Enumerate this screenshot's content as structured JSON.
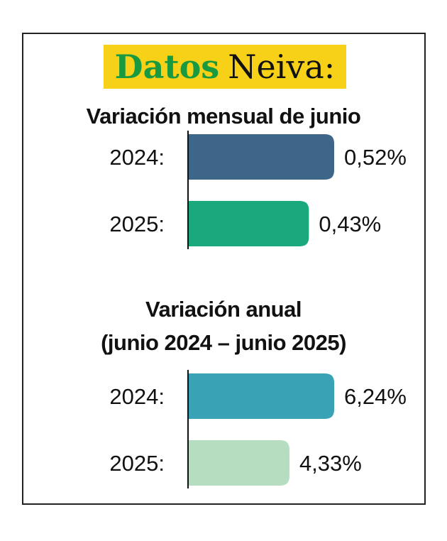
{
  "header": {
    "title_strong": "Datos",
    "title_light": "Neiva:",
    "accent_color": "#f7d117",
    "title_color": "#1a9a40"
  },
  "chart_data": [
    {
      "type": "bar",
      "orientation": "horizontal",
      "title": "Variación mensual de junio",
      "categories": [
        "2024:",
        "2025:"
      ],
      "values": [
        0.52,
        0.43
      ],
      "value_labels": [
        "0,52%",
        "0,43%"
      ],
      "colors": [
        "#3d6688",
        "#19a97c"
      ],
      "xlim": [
        0,
        0.52
      ]
    },
    {
      "type": "bar",
      "orientation": "horizontal",
      "title": "Variación anual",
      "subtitle": "(junio 2024 – junio 2025)",
      "categories": [
        "2024:",
        "2025:"
      ],
      "values": [
        6.24,
        4.33
      ],
      "value_labels": [
        "6,24%",
        "4,33%"
      ],
      "colors": [
        "#3aa2b5",
        "#b7ddc0"
      ],
      "xlim": [
        0,
        6.24
      ]
    }
  ]
}
